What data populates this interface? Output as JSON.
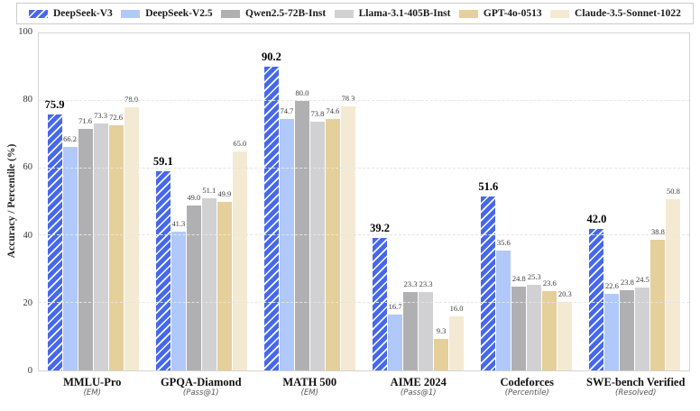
{
  "chart_data": {
    "type": "bar",
    "title": "",
    "ylabel": "Accuracy / Percentile (%)",
    "ylim": [
      0,
      100
    ],
    "yticks": [
      0,
      20,
      40,
      60,
      80,
      100
    ],
    "grid": "horizontal-dashed",
    "legend_position": "top",
    "categories": [
      {
        "label": "MMLU-Pro",
        "metric": "(EM)"
      },
      {
        "label": "GPQA-Diamond",
        "metric": "(Pass@1)"
      },
      {
        "label": "MATH 500",
        "metric": "(EM)"
      },
      {
        "label": "AIME 2024",
        "metric": "(Pass@1)"
      },
      {
        "label": "Codeforces",
        "metric": "(Percentile)"
      },
      {
        "label": "SWE-bench Verified",
        "metric": "(Resolved)"
      }
    ],
    "series": [
      {
        "name": "DeepSeek-V3",
        "color": "#4668ea",
        "hatch": true,
        "emphasis": true,
        "values": [
          75.9,
          59.1,
          90.2,
          39.2,
          51.6,
          42.0
        ]
      },
      {
        "name": "DeepSeek-V2.5",
        "color": "#b0c8fa",
        "hatch": false,
        "emphasis": false,
        "values": [
          66.2,
          41.3,
          74.7,
          16.7,
          35.6,
          22.6
        ]
      },
      {
        "name": "Qwen2.5-72B-Inst",
        "color": "#b0b0b2",
        "hatch": false,
        "emphasis": false,
        "values": [
          71.6,
          49.0,
          80.0,
          23.3,
          24.8,
          23.8
        ]
      },
      {
        "name": "Llama-3.1-405B-Inst",
        "color": "#d1d1d3",
        "hatch": false,
        "emphasis": false,
        "values": [
          73.3,
          51.1,
          73.8,
          23.3,
          25.3,
          24.5
        ]
      },
      {
        "name": "GPT-4o-0513",
        "color": "#e5cf9b",
        "hatch": false,
        "emphasis": false,
        "values": [
          72.6,
          49.9,
          74.6,
          9.3,
          23.6,
          38.8
        ]
      },
      {
        "name": "Claude-3.5-Sonnet-1022",
        "color": "#f4ead3",
        "hatch": false,
        "emphasis": false,
        "values": [
          78.0,
          65.0,
          78.3,
          16.0,
          20.3,
          50.8
        ]
      }
    ],
    "colors": {
      "grid": "#e6e6e6",
      "spine": "#d4d4d4",
      "hatch_line": "rgba(255,255,255,0.72)"
    }
  }
}
